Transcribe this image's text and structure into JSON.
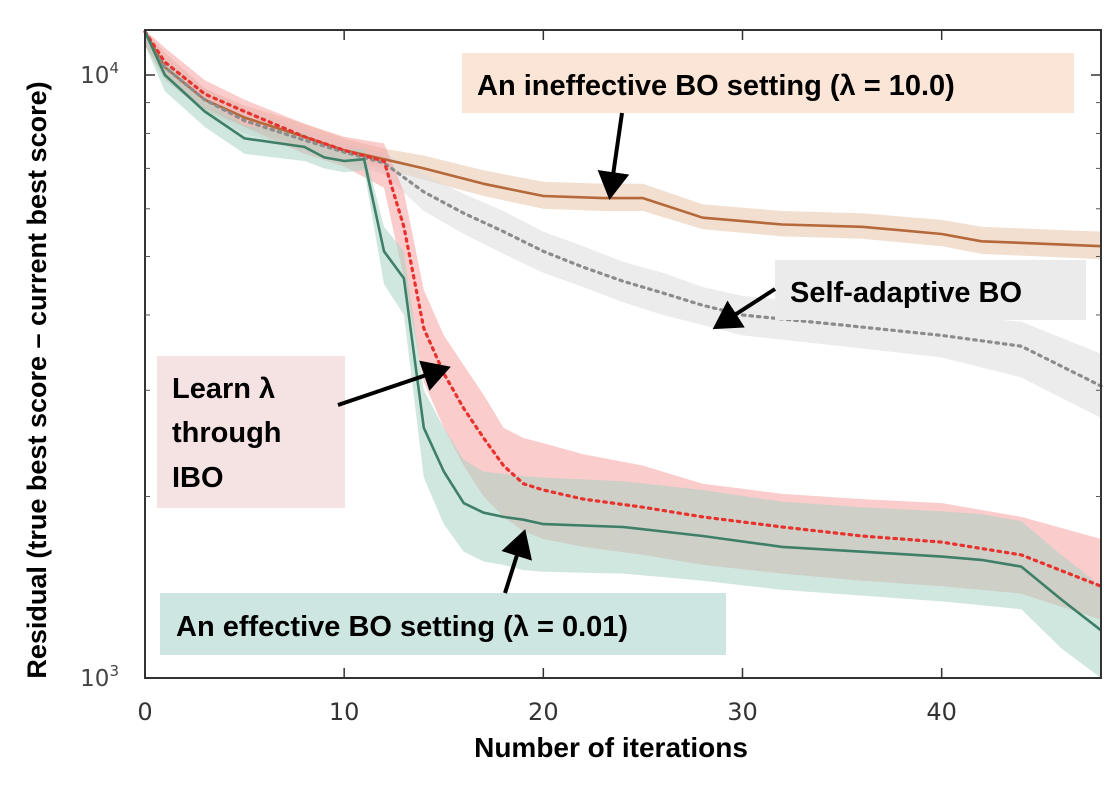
{
  "chart_data": {
    "type": "line",
    "xlabel": "Number of iterations",
    "ylabel": "Residual (true best score – current best score)",
    "xlim": [
      0,
      48
    ],
    "ylim": [
      1000,
      11800
    ],
    "yscale": "log",
    "grid": false,
    "x_ticks": [
      0,
      10,
      20,
      30,
      40
    ],
    "y_ticks": [
      {
        "base": "10",
        "exp": "3",
        "value": 1000
      },
      {
        "base": "10",
        "exp": "4",
        "value": 10000
      }
    ],
    "colors": {
      "ineffective": "#b5683a",
      "ineffective_band": "#e8c4a8",
      "self_adaptive": "#8c8c8c",
      "self_adaptive_band": "#dcdcdc",
      "ibo": "#e8322e",
      "ibo_band": "#f5a3a3",
      "effective": "#3f7f68",
      "effective_band": "#a9d3c4"
    },
    "series": [
      {
        "key": "ineffective",
        "style": "solid",
        "x": [
          0,
          1,
          3,
          5,
          8,
          10,
          12,
          14,
          17,
          20,
          23,
          25,
          28,
          32,
          36,
          40,
          42,
          45,
          48
        ],
        "values": [
          11800,
          10300,
          9100,
          8500,
          7900,
          7500,
          7250,
          7000,
          6600,
          6300,
          6250,
          6250,
          5800,
          5650,
          5600,
          5450,
          5300,
          5250,
          5200
        ],
        "lower": [
          11200,
          9800,
          8700,
          8200,
          7600,
          7200,
          7000,
          6700,
          6300,
          6000,
          5950,
          5950,
          5550,
          5400,
          5350,
          5200,
          5050,
          5000,
          4950
        ],
        "upper": [
          12000,
          10900,
          9500,
          8900,
          8300,
          7850,
          7550,
          7350,
          6950,
          6650,
          6600,
          6600,
          6100,
          5950,
          5900,
          5750,
          5600,
          5550,
          5500
        ]
      },
      {
        "key": "self_adaptive",
        "style": "dotted",
        "x": [
          0,
          1,
          3,
          5,
          8,
          10,
          12,
          14,
          16,
          18,
          20,
          22,
          24,
          26,
          28,
          30,
          35,
          40,
          44,
          48
        ],
        "values": [
          11800,
          10300,
          9100,
          8400,
          7800,
          7450,
          7150,
          6400,
          5900,
          5500,
          5100,
          4800,
          4550,
          4350,
          4150,
          4000,
          3850,
          3700,
          3550,
          3050
        ],
        "lower": [
          11200,
          9800,
          8700,
          8000,
          7500,
          7150,
          6850,
          5950,
          5450,
          5050,
          4700,
          4450,
          4200,
          4000,
          3850,
          3700,
          3550,
          3400,
          3150,
          2700
        ],
        "upper": [
          12000,
          10800,
          9500,
          8800,
          8150,
          7750,
          7450,
          6850,
          6350,
          5950,
          5500,
          5200,
          4900,
          4700,
          4450,
          4300,
          4150,
          4000,
          3900,
          3450
        ]
      },
      {
        "key": "ibo",
        "style": "dotted",
        "x": [
          0,
          1,
          3,
          5,
          8,
          10,
          12,
          13,
          14,
          15,
          16,
          17,
          18,
          19,
          20,
          22,
          25,
          28,
          32,
          36,
          40,
          44,
          48
        ],
        "values": [
          11800,
          10500,
          9300,
          8700,
          7900,
          7500,
          7200,
          5600,
          3800,
          3200,
          2800,
          2500,
          2250,
          2100,
          2050,
          1980,
          1920,
          1850,
          1780,
          1720,
          1680,
          1600,
          1420
        ],
        "lower": [
          11200,
          9900,
          8800,
          8200,
          7400,
          7050,
          6500,
          4600,
          3100,
          2600,
          2250,
          2000,
          1850,
          1750,
          1700,
          1650,
          1600,
          1540,
          1490,
          1450,
          1420,
          1380,
          1250
        ],
        "upper": [
          12000,
          11100,
          9800,
          9100,
          8300,
          7900,
          7700,
          6400,
          4400,
          3700,
          3300,
          2950,
          2600,
          2500,
          2450,
          2350,
          2250,
          2100,
          2020,
          1980,
          1950,
          1850,
          1700
        ]
      },
      {
        "key": "effective",
        "style": "solid",
        "x": [
          0,
          1,
          3,
          5,
          8,
          9,
          10,
          11,
          12,
          13,
          14,
          15,
          16,
          17,
          18,
          19,
          20,
          24,
          28,
          32,
          36,
          40,
          42,
          44,
          46,
          48
        ],
        "values": [
          11800,
          10000,
          8700,
          7850,
          7600,
          7300,
          7200,
          7250,
          5100,
          4600,
          2600,
          2200,
          1950,
          1880,
          1850,
          1830,
          1800,
          1780,
          1720,
          1650,
          1620,
          1590,
          1570,
          1530,
          1350,
          1200
        ],
        "lower": [
          11200,
          9400,
          8200,
          7400,
          7200,
          7000,
          6900,
          6950,
          4500,
          4000,
          2150,
          1800,
          1620,
          1560,
          1540,
          1510,
          1500,
          1490,
          1450,
          1400,
          1370,
          1340,
          1320,
          1300,
          1120,
          990
        ],
        "upper": [
          12000,
          10500,
          9100,
          8250,
          8000,
          7600,
          7500,
          7550,
          5600,
          5100,
          3000,
          2600,
          2300,
          2200,
          2180,
          2160,
          2150,
          2120,
          2050,
          1960,
          1920,
          1890,
          1870,
          1820,
          1600,
          1420
        ]
      }
    ],
    "annotations": {
      "ineffective": {
        "text": "An ineffective BO setting (λ = 10.0)",
        "bg": "#fae5d6"
      },
      "self_adaptive": {
        "text": "Self-adaptive BO",
        "bg": "#ebebeb"
      },
      "ibo": {
        "lines": [
          "Learn λ",
          "through",
          "IBO"
        ],
        "bg": "#f5e3e3"
      },
      "effective": {
        "text": "An effective BO setting (λ = 0.01)",
        "bg": "#cde6e2"
      }
    }
  }
}
